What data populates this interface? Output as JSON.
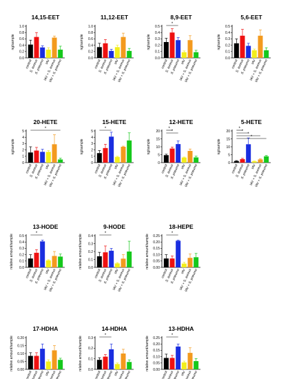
{
  "categories": [
    "control",
    "S. aureus",
    "S. pneumo",
    "IAV",
    "IAV + S. aureus",
    "IAV + S. pneumo"
  ],
  "colors": [
    "#000000",
    "#ee1111",
    "#1a2ee0",
    "#f2ee1c",
    "#f39a1e",
    "#16c81c"
  ],
  "chart_data": [
    {
      "type": "bar",
      "title": "14,15-EET",
      "ylabel": "ng/sample",
      "ylim": [
        0,
        1.0
      ],
      "ticks": [
        "0.0",
        "0.2",
        "0.4",
        "0.6",
        "0.8",
        "1.0"
      ],
      "values": [
        0.42,
        0.66,
        0.33,
        0.26,
        0.64,
        0.26
      ],
      "errors": [
        0.14,
        0.14,
        0.05,
        0.06,
        0.05,
        0.11
      ],
      "significance": []
    },
    {
      "type": "bar",
      "title": "11,12-EET",
      "ylabel": "ng/sample",
      "ylim": [
        0,
        1.0
      ],
      "ticks": [
        "0.0",
        "0.2",
        "0.4",
        "0.6",
        "0.8",
        "1.0"
      ],
      "values": [
        0.34,
        0.46,
        0.22,
        0.34,
        0.66,
        0.22
      ],
      "errors": [
        0.12,
        0.12,
        0.05,
        0.06,
        0.12,
        0.08
      ],
      "significance": []
    },
    {
      "type": "bar",
      "title": "8,9-EET",
      "ylabel": "ng/sample",
      "ylim": [
        0,
        0.5
      ],
      "ticks": [
        "0.0",
        "0.1",
        "0.2",
        "0.3",
        "0.4",
        "0.5"
      ],
      "values": [
        0.25,
        0.4,
        0.28,
        0.09,
        0.28,
        0.09
      ],
      "errors": [
        0.06,
        0.06,
        0.04,
        0.02,
        0.07,
        0.03
      ],
      "significance": [
        {
          "from": 0,
          "to": 2,
          "label": "*"
        }
      ]
    },
    {
      "type": "bar",
      "title": "5,6-EET",
      "ylabel": "ng/sample",
      "ylim": [
        0,
        0.5
      ],
      "ticks": [
        "0.0",
        "0.1",
        "0.2",
        "0.3",
        "0.4",
        "0.5"
      ],
      "values": [
        0.23,
        0.35,
        0.19,
        0.12,
        0.35,
        0.12
      ],
      "errors": [
        0.07,
        0.1,
        0.04,
        0.02,
        0.09,
        0.04
      ],
      "significance": []
    },
    {
      "type": "bar",
      "title": "20-HETE",
      "ylabel": "ng/sample",
      "ylim": [
        0,
        5
      ],
      "ticks": [
        "0",
        "1",
        "2",
        "3",
        "4",
        "5"
      ],
      "values": [
        1.6,
        1.9,
        1.7,
        1.7,
        2.9,
        0.5
      ],
      "errors": [
        0.9,
        0.5,
        0.4,
        0.2,
        1.5,
        0.2
      ],
      "significance": [
        {
          "from": 0,
          "to": 5,
          "label": "*"
        }
      ]
    },
    {
      "type": "bar",
      "title": "15-HETE",
      "ylabel": "ng/sample",
      "ylim": [
        0,
        5
      ],
      "ticks": [
        "0",
        "1",
        "2",
        "3",
        "4",
        "5"
      ],
      "values": [
        1.5,
        2.3,
        4.1,
        0.9,
        2.5,
        3.5
      ],
      "errors": [
        0.4,
        0.6,
        0.7,
        0.1,
        0.1,
        1.2
      ],
      "significance": [
        {
          "from": 0,
          "to": 2,
          "label": "*"
        }
      ]
    },
    {
      "type": "bar",
      "title": "12-HETE",
      "ylabel": "ng/sample",
      "ylim": [
        0,
        20
      ],
      "ticks": [
        "0",
        "5",
        "10",
        "15",
        "20"
      ],
      "values": [
        4.7,
        8.9,
        11.7,
        3.2,
        7.4,
        3.3
      ],
      "errors": [
        0.6,
        0.9,
        2.0,
        0.3,
        1.2,
        0.8
      ],
      "significance": [
        {
          "from": 0,
          "to": 1,
          "label": "*"
        },
        {
          "from": 0,
          "to": 2,
          "label": "*"
        }
      ]
    },
    {
      "type": "bar",
      "title": "5-HETE",
      "ylabel": "ng/sample",
      "ylim": [
        0,
        20
      ],
      "ticks": [
        "0",
        "5",
        "10",
        "15",
        "20"
      ],
      "values": [
        1.0,
        2.2,
        11.6,
        0.8,
        2.0,
        4.0
      ],
      "errors": [
        0.3,
        0.5,
        4.0,
        0.2,
        0.4,
        0.5
      ],
      "significance": [
        {
          "from": 0,
          "to": 1,
          "label": "*"
        },
        {
          "from": 0,
          "to": 2,
          "label": "*"
        },
        {
          "from": 0,
          "to": 4,
          "label": "*"
        },
        {
          "from": 0,
          "to": 5,
          "label": "*"
        }
      ]
    },
    {
      "type": "bar",
      "title": "13-HODE",
      "ylabel": "relative amount/sample",
      "ylim": [
        0,
        0.5
      ],
      "ticks": [
        "0.0",
        "0.1",
        "0.2",
        "0.3",
        "0.4",
        "0.5"
      ],
      "values": [
        0.14,
        0.23,
        0.41,
        0.11,
        0.18,
        0.17
      ],
      "errors": [
        0.06,
        0.05,
        0.02,
        0.01,
        0.07,
        0.04
      ],
      "significance": [
        {
          "from": 0,
          "to": 2,
          "label": "*"
        }
      ]
    },
    {
      "type": "bar",
      "title": "9-HODE",
      "ylabel": "relative amount/sample",
      "ylim": [
        0,
        0.4
      ],
      "ticks": [
        "0.0",
        "0.1",
        "0.2",
        "0.3",
        "0.4"
      ],
      "values": [
        0.14,
        0.19,
        0.21,
        0.05,
        0.11,
        0.2
      ],
      "errors": [
        0.05,
        0.08,
        0.03,
        0.01,
        0.05,
        0.13
      ],
      "significance": [
        {
          "from": 0,
          "to": 2,
          "label": "*"
        }
      ]
    },
    {
      "type": "bar",
      "title": "18-HEPE",
      "ylabel": "relative amount/sample",
      "ylim": [
        0,
        0.25
      ],
      "ticks": [
        "0.00",
        "0.05",
        "0.10",
        "0.15",
        "0.20",
        "0.25"
      ],
      "values": [
        0.07,
        0.07,
        0.21,
        0.03,
        0.075,
        0.08
      ],
      "errors": [
        0.03,
        0.02,
        0.005,
        0.01,
        0.03,
        0.03
      ],
      "significance": [
        {
          "from": 0,
          "to": 2,
          "label": "*"
        }
      ]
    },
    {
      "type": "bar",
      "title": "17-HDHA",
      "ylabel": "relative amount/sample",
      "ylim": [
        0,
        0.2
      ],
      "ticks": [
        "0.00",
        "0.05",
        "0.10",
        "0.15",
        "0.20"
      ],
      "values": [
        0.085,
        0.085,
        0.13,
        0.05,
        0.12,
        0.06
      ],
      "errors": [
        0.02,
        0.02,
        0.03,
        0.01,
        0.03,
        0.01
      ],
      "significance": []
    },
    {
      "type": "bar",
      "title": "14-HDHA",
      "ylabel": "relative amount/sample",
      "ylim": [
        0,
        0.3
      ],
      "ticks": [
        "0.0",
        "0.1",
        "0.2",
        "0.3"
      ],
      "values": [
        0.09,
        0.12,
        0.19,
        0.05,
        0.15,
        0.07
      ],
      "errors": [
        0.02,
        0.02,
        0.05,
        0.01,
        0.04,
        0.02
      ],
      "significance": [
        {
          "from": 0,
          "to": 2,
          "label": "*"
        }
      ]
    },
    {
      "type": "bar",
      "title": "13-HDHA",
      "ylabel": "relative amount/sample",
      "ylim": [
        0,
        0.25
      ],
      "ticks": [
        "0.00",
        "0.05",
        "0.10",
        "0.15",
        "0.20",
        "0.25"
      ],
      "values": [
        0.09,
        0.09,
        0.18,
        0.055,
        0.13,
        0.065
      ],
      "errors": [
        0.03,
        0.02,
        0.02,
        0.01,
        0.04,
        0.02
      ],
      "significance": [
        {
          "from": 0,
          "to": 2,
          "label": "*"
        }
      ]
    }
  ]
}
